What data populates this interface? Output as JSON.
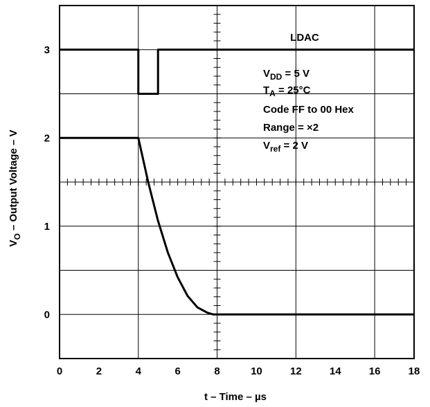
{
  "chart_data": {
    "type": "line",
    "xlabel": "t – Time – µs",
    "ylabel": "V",
    "ylabel_sub": "O",
    "ylabel_rest": " – Output Voltage – V",
    "xlim": [
      0,
      18
    ],
    "ylim": [
      -0.5,
      3.5
    ],
    "x_ticks": [
      "0",
      "2",
      "4",
      "6",
      "8",
      "10",
      "12",
      "14",
      "16",
      "18"
    ],
    "y_ticks": [
      "0",
      "1",
      "2",
      "3"
    ],
    "grid": true,
    "series": [
      {
        "name": "LDAC",
        "x": [
          0,
          4,
          4,
          5,
          5,
          18
        ],
        "y": [
          3.0,
          3.0,
          2.5,
          2.5,
          3.0,
          3.0
        ]
      },
      {
        "name": "",
        "x": [
          0,
          4,
          4.5,
          5,
          5.5,
          6,
          6.5,
          7,
          7.5,
          7.8,
          8,
          18
        ],
        "y": [
          2.0,
          2.0,
          1.5,
          1.06,
          0.7,
          0.42,
          0.21,
          0.08,
          0.02,
          0.0,
          0.0,
          0.0
        ]
      }
    ],
    "annotations": {
      "ldac": "LDAC",
      "vdd_main": "V",
      "vdd_sub": "DD",
      "vdd_rest": " = 5 V",
      "ta_main": "T",
      "ta_sub": "A",
      "ta_rest": " = 25°C",
      "code": "Code FF to 00 Hex",
      "range": "Range = ×2",
      "vref_main": "V",
      "vref_sub": "ref",
      "vref_rest": " = 2 V"
    }
  }
}
